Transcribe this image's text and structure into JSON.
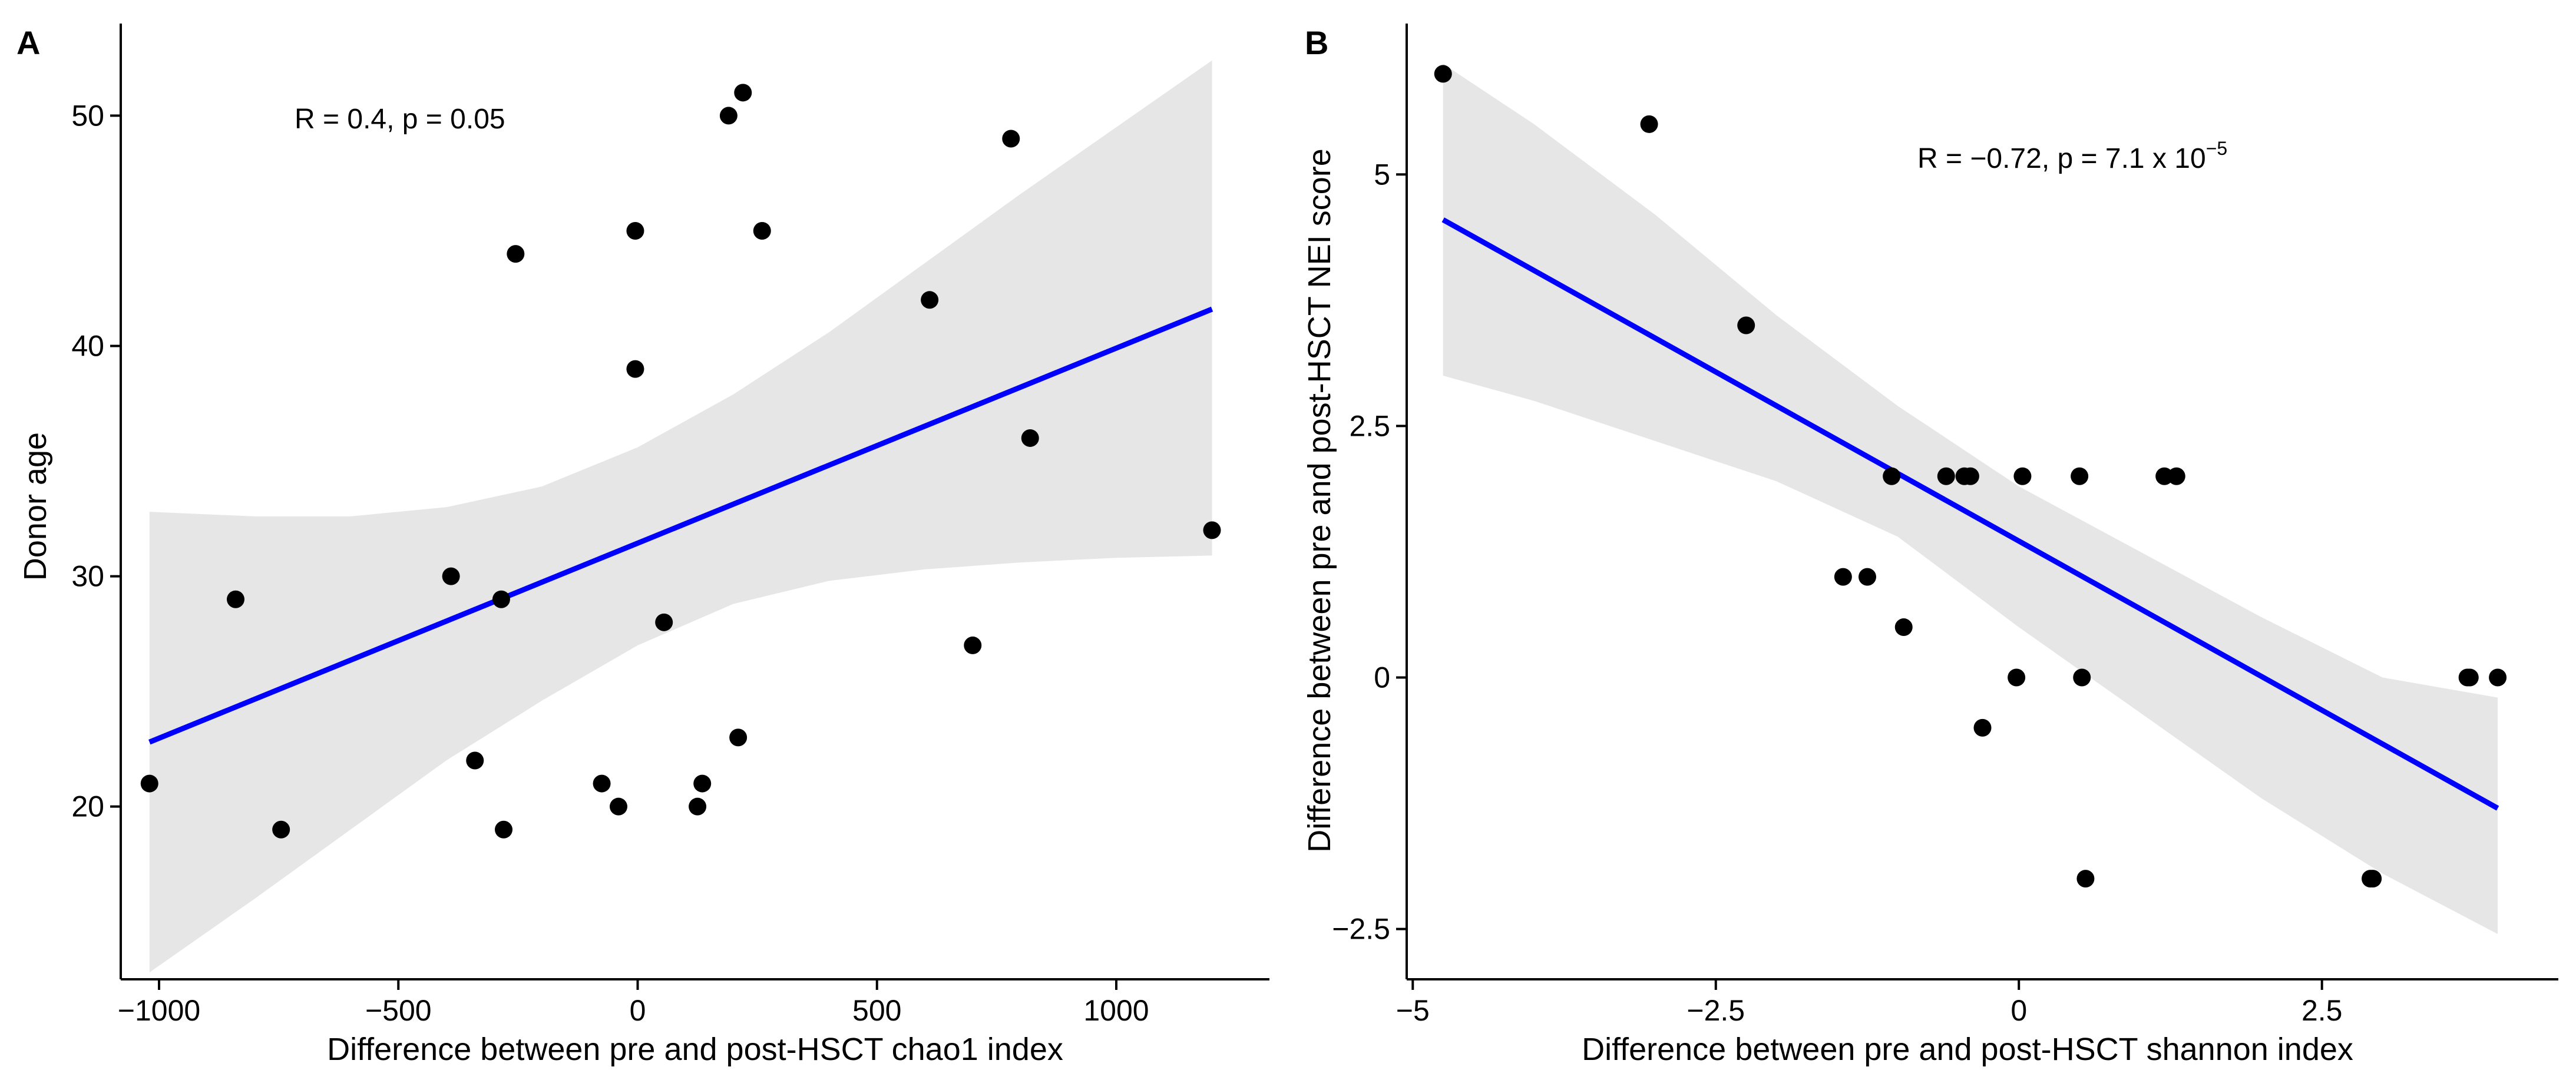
{
  "chart_data": [
    {
      "type": "scatter",
      "panel_label": "A",
      "xlabel": "Difference between pre and post-HSCT chao1 index",
      "ylabel": "Donor age",
      "xlim": [
        -1080,
        1320
      ],
      "ylim": [
        12.5,
        54
      ],
      "x_ticks": [
        -1000,
        -500,
        0,
        500,
        1000
      ],
      "x_tick_labels": [
        "−1000",
        "−500",
        "0",
        "500",
        "1000"
      ],
      "y_ticks": [
        20,
        30,
        40,
        50
      ],
      "y_tick_labels": [
        "20",
        "30",
        "40",
        "50"
      ],
      "grid": false,
      "annotation": {
        "text": "R = 0.4, p = 0.05",
        "x": -755,
        "y": 50
      },
      "points": [
        {
          "x": -1020,
          "y": 21
        },
        {
          "x": -840,
          "y": 29
        },
        {
          "x": -745,
          "y": 19
        },
        {
          "x": -390,
          "y": 30
        },
        {
          "x": -340,
          "y": 22
        },
        {
          "x": -285,
          "y": 29
        },
        {
          "x": -280,
          "y": 19
        },
        {
          "x": -255,
          "y": 44
        },
        {
          "x": -75,
          "y": 21
        },
        {
          "x": -40,
          "y": 20
        },
        {
          "x": -5,
          "y": 45
        },
        {
          "x": -5,
          "y": 39
        },
        {
          "x": 55,
          "y": 28
        },
        {
          "x": 125,
          "y": 20
        },
        {
          "x": 135,
          "y": 21
        },
        {
          "x": 190,
          "y": 50
        },
        {
          "x": 210,
          "y": 23
        },
        {
          "x": 220,
          "y": 51
        },
        {
          "x": 260,
          "y": 45
        },
        {
          "x": 610,
          "y": 42
        },
        {
          "x": 700,
          "y": 27
        },
        {
          "x": 780,
          "y": 49
        },
        {
          "x": 820,
          "y": 36
        },
        {
          "x": 1200,
          "y": 32
        }
      ],
      "fit_line": {
        "x": [
          -1020,
          1200
        ],
        "y": [
          22.8,
          41.6
        ]
      },
      "confidence_band": {
        "x": [
          -1020,
          -800,
          -600,
          -400,
          -200,
          0,
          200,
          400,
          600,
          800,
          1000,
          1200
        ],
        "upper": [
          32.8,
          32.6,
          32.6,
          33.0,
          33.9,
          35.6,
          37.9,
          40.6,
          43.6,
          46.6,
          49.5,
          52.4
        ],
        "lower": [
          12.8,
          16.0,
          19.0,
          22.0,
          24.6,
          27.0,
          28.8,
          29.8,
          30.3,
          30.6,
          30.8,
          30.9
        ]
      },
      "colors": {
        "points": "#000000",
        "line": "#0000ff",
        "band": "#e6e6e6"
      }
    },
    {
      "type": "scatter",
      "panel_label": "B",
      "xlabel": "Difference between pre and post-HSCT shannon index",
      "ylabel": "Difference between pre and post-HSCT NEI score",
      "xlim": [
        -5.05,
        4.45
      ],
      "ylim": [
        -3,
        6.5
      ],
      "x_ticks": [
        -5,
        -2.5,
        0,
        2.5
      ],
      "x_tick_labels": [
        "−5",
        "−2.5",
        "0",
        "2.5"
      ],
      "y_ticks": [
        -2.5,
        0,
        2.5,
        5
      ],
      "y_tick_labels": [
        "−2.5",
        "0",
        "2.5",
        "5"
      ],
      "grid": false,
      "annotation": {
        "text": "R = −0.72, p = 7.1 x 10",
        "superscript": "−5",
        "x": -0.5,
        "y": 5.1
      },
      "points": [
        {
          "x": -4.75,
          "y": 6.0
        },
        {
          "x": -3.05,
          "y": 5.5
        },
        {
          "x": -2.25,
          "y": 3.5
        },
        {
          "x": -1.45,
          "y": 1.0
        },
        {
          "x": -1.25,
          "y": 1.0
        },
        {
          "x": -1.05,
          "y": 2.0
        },
        {
          "x": -0.95,
          "y": 0.5
        },
        {
          "x": -0.6,
          "y": 2.0
        },
        {
          "x": -0.45,
          "y": 2.0
        },
        {
          "x": -0.4,
          "y": 2.0
        },
        {
          "x": -0.3,
          "y": -0.5
        },
        {
          "x": -0.02,
          "y": 0.0
        },
        {
          "x": 0.03,
          "y": 2.0
        },
        {
          "x": 0.5,
          "y": 2.0
        },
        {
          "x": 0.52,
          "y": 0.0
        },
        {
          "x": 0.55,
          "y": -2.0
        },
        {
          "x": 1.2,
          "y": 2.0
        },
        {
          "x": 1.3,
          "y": 2.0
        },
        {
          "x": 2.9,
          "y": -2.0
        },
        {
          "x": 2.92,
          "y": -2.0
        },
        {
          "x": 3.7,
          "y": 0.0
        },
        {
          "x": 3.72,
          "y": 0.0
        },
        {
          "x": 3.95,
          "y": 0.0
        }
      ],
      "fit_line": {
        "x": [
          -4.75,
          3.95
        ],
        "y": [
          4.55,
          -1.3
        ]
      },
      "confidence_band": {
        "x": [
          -4.75,
          -4.0,
          -3.0,
          -2.0,
          -1.0,
          0.0,
          1.0,
          2.0,
          3.0,
          3.95
        ],
        "upper": [
          6.1,
          5.5,
          4.6,
          3.6,
          2.7,
          1.9,
          1.25,
          0.6,
          0.0,
          -0.2
        ],
        "lower": [
          3.0,
          2.75,
          2.35,
          1.95,
          1.4,
          0.5,
          -0.35,
          -1.2,
          -1.95,
          -2.55
        ]
      },
      "colors": {
        "points": "#000000",
        "line": "#0000ff",
        "band": "#e6e6e6"
      }
    }
  ]
}
